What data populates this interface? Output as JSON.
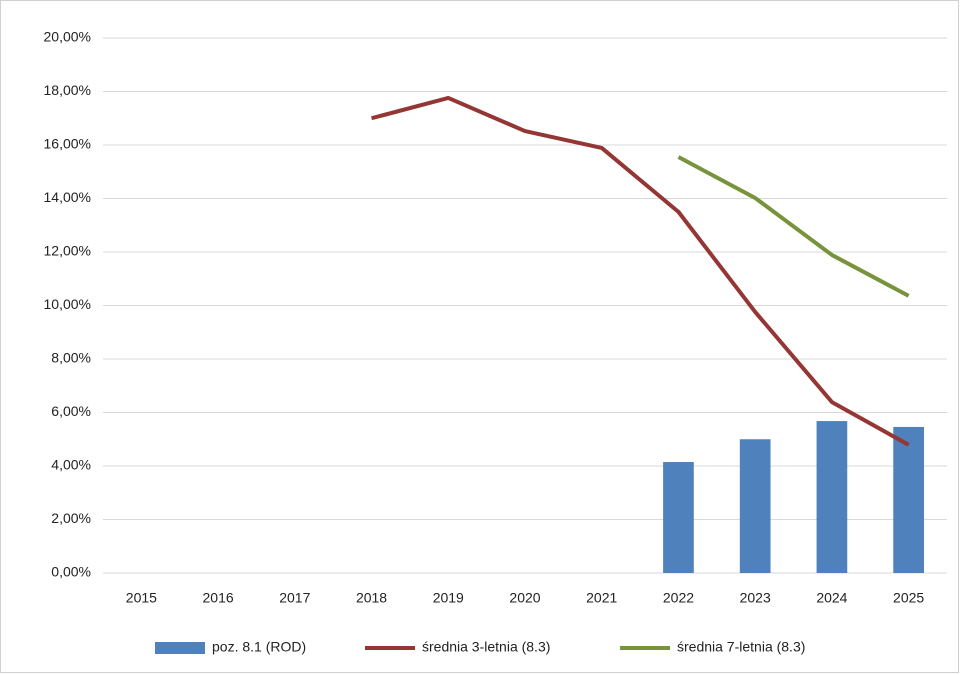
{
  "chart_data": {
    "type": "combo",
    "categories": [
      "2015",
      "2016",
      "2017",
      "2018",
      "2019",
      "2020",
      "2021",
      "2022",
      "2023",
      "2024",
      "2025"
    ],
    "series": [
      {
        "name": "poz. 8.1 (ROD)",
        "type": "bar",
        "color": "#4f81bd",
        "values": [
          null,
          null,
          null,
          null,
          null,
          null,
          null,
          4.15,
          5.0,
          5.68,
          5.46
        ]
      },
      {
        "name": "średnia 3-letnia (8.3)",
        "type": "line",
        "color": "#943634",
        "values": [
          null,
          null,
          null,
          17.0,
          17.76,
          16.52,
          15.89,
          13.5,
          9.76,
          6.39,
          4.79
        ]
      },
      {
        "name": "średnia 7-letnia (8.3)",
        "type": "line",
        "color": "#77933c",
        "values": [
          null,
          null,
          null,
          null,
          null,
          null,
          null,
          15.55,
          14.02,
          11.89,
          10.36
        ]
      }
    ],
    "ylim": [
      0,
      20
    ],
    "yticks": [
      {
        "value": 0,
        "label": "0,00%"
      },
      {
        "value": 2,
        "label": "2,00%"
      },
      {
        "value": 4,
        "label": "4,00%"
      },
      {
        "value": 6,
        "label": "6,00%"
      },
      {
        "value": 8,
        "label": "8,00%"
      },
      {
        "value": 10,
        "label": "10,00%"
      },
      {
        "value": 12,
        "label": "12,00%"
      },
      {
        "value": 14,
        "label": "14,00%"
      },
      {
        "value": 16,
        "label": "16,00%"
      },
      {
        "value": 18,
        "label": "18,00%"
      },
      {
        "value": 20,
        "label": "20,00%"
      }
    ],
    "grid": true,
    "legend": "bottom"
  }
}
